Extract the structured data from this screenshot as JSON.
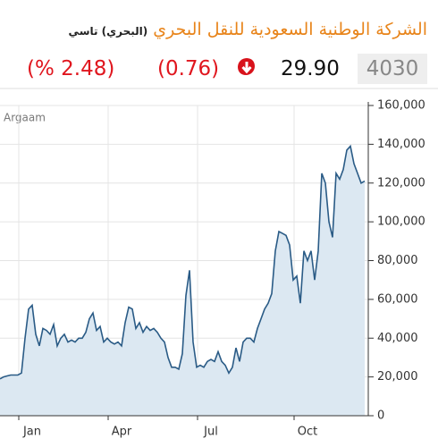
{
  "header": {
    "title": "الشركة الوطنية السعودية للنقل البحري",
    "subtitle": "(البحري) تاسي",
    "change_percent": "(% 2.48)",
    "change": "(0.76)",
    "price": "29.90",
    "symbol": "4030"
  },
  "chart_data": {
    "type": "area",
    "credit": "Argaam",
    "color": "#2a5b86",
    "fill": "#dce8f2",
    "categories": [
      null,
      null,
      null,
      null,
      null,
      null,
      null,
      null,
      null,
      "Jan",
      null,
      null,
      null,
      null,
      null,
      null,
      null,
      null,
      null,
      null,
      null,
      null,
      null,
      null,
      null,
      null,
      null,
      null,
      null,
      null,
      null,
      null,
      null,
      null,
      "Apr",
      null,
      null,
      null,
      null,
      null,
      null,
      null,
      null,
      null,
      null,
      null,
      null,
      null,
      null,
      null,
      null,
      null,
      null,
      null,
      null,
      null,
      null,
      null,
      null,
      "Jul",
      null,
      null,
      null,
      null,
      null,
      null,
      null,
      null,
      null,
      null,
      null,
      null,
      null,
      null,
      null,
      null,
      null,
      null,
      null,
      null,
      null,
      null,
      null,
      null,
      null,
      null,
      "Oct",
      null,
      null,
      null,
      null,
      null,
      null,
      null,
      null,
      null,
      null,
      null,
      null,
      null,
      null,
      null,
      null
    ],
    "values": [
      19000,
      20000,
      20500,
      21000,
      21000,
      21000,
      22000,
      40000,
      55000,
      57000,
      42000,
      36000,
      45000,
      44000,
      42000,
      47000,
      36000,
      40000,
      42000,
      38000,
      39000,
      38000,
      40000,
      40000,
      43000,
      50000,
      53000,
      44000,
      46000,
      38000,
      40000,
      38000,
      37000,
      38000,
      36000,
      48000,
      56000,
      55000,
      45000,
      48000,
      43000,
      46000,
      44000,
      45000,
      43000,
      40000,
      38000,
      30000,
      25000,
      25000,
      24000,
      32000,
      62000,
      75000,
      38000,
      25000,
      26000,
      25000,
      28000,
      29000,
      28000,
      33000,
      28000,
      26000,
      22000,
      25000,
      35000,
      28000,
      38000,
      40000,
      40000,
      38000,
      45000,
      50000,
      55000,
      58000,
      63000,
      85000,
      95000,
      94000,
      93000,
      88000,
      70000,
      72000,
      58000,
      85000,
      80000,
      85000,
      70000,
      85000,
      125000,
      120000,
      100000,
      92000,
      125000,
      122000,
      127000,
      137000,
      139000,
      130000,
      125000,
      120000,
      121000
    ],
    "ylim": [
      0,
      160000
    ],
    "yticks": [
      0,
      {
        "value": 20000,
        "label": "20,000"
      },
      {
        "value": 40000,
        "label": "40,000"
      },
      {
        "value": 60000,
        "label": "60,000"
      },
      {
        "value": 80000,
        "label": "80,000"
      },
      {
        "value": 100000,
        "label": "100,000"
      },
      {
        "value": 120000,
        "label": "120,000"
      },
      {
        "value": 140000,
        "label": "140,000"
      },
      {
        "value": 160000,
        "label": "160,000"
      }
    ],
    "grid": true
  }
}
